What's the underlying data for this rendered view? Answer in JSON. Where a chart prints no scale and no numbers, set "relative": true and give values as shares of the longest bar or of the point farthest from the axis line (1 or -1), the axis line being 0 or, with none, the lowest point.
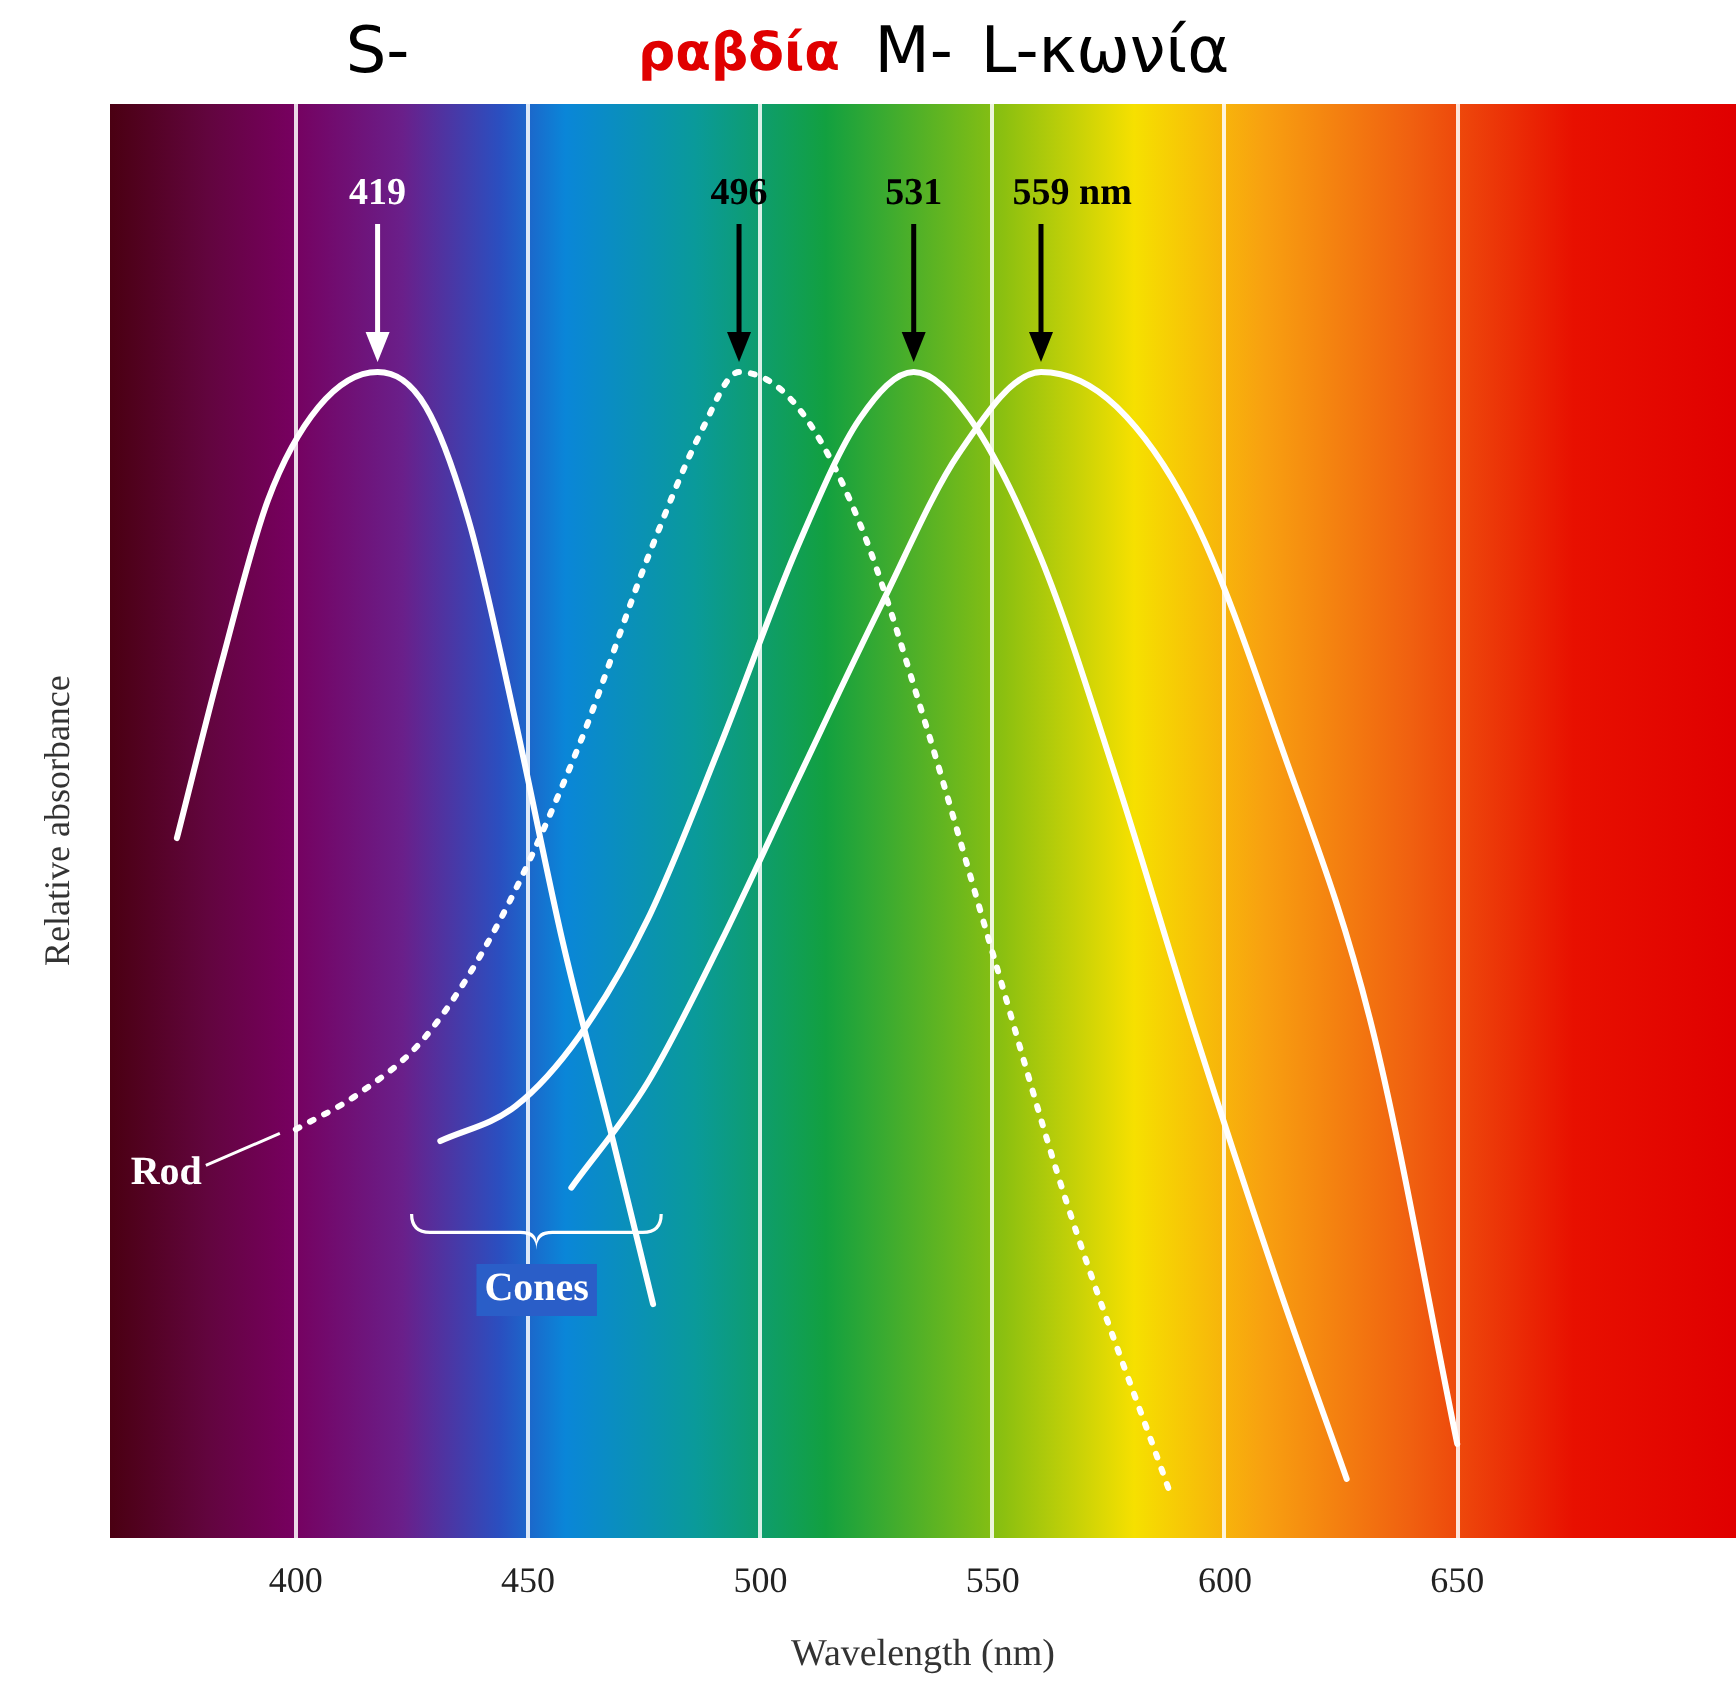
{
  "chart_data": {
    "type": "line",
    "xlabel": "Wavelength (nm)",
    "ylabel": "Relative absorbance",
    "relative": true,
    "xlim": [
      360,
      710
    ],
    "xticks": [
      400,
      450,
      500,
      550,
      600,
      650
    ],
    "grid": "x",
    "marker": "none",
    "series": [
      {
        "color": "#ffffff",
        "line_style": "solid",
        "x": [
          374.4,
          384,
          394,
          404.9,
          417.6,
          428,
          437.4,
          447.3,
          457.5,
          468.3,
          476.9
        ],
        "values": [
          0.6,
          0.75,
          0.89,
          0.97,
          1,
          0.97,
          0.87,
          0.7,
          0.51,
          0.34,
          0.2
        ]
      },
      {
        "name": "Rod",
        "color": "#ffffff",
        "line_style": "dotted",
        "x": [
          400,
          413.3,
          428,
          444,
          461,
          475.7,
          487.4,
          495.4,
          508,
          521.4,
          535.4,
          550.1,
          565.7,
          588
        ],
        "values": [
          0.35,
          0.38,
          0.43,
          0.53,
          0.68,
          0.84,
          0.95,
          1,
          0.97,
          0.87,
          0.7,
          0.5,
          0.29,
          0.04
        ]
      },
      {
        "color": "#ffffff",
        "line_style": "solid",
        "x": [
          431.1,
          447.3,
          461,
          475.7,
          491.4,
          508,
          521.4,
          533,
          545.1,
          560.4,
          576.7,
          593.8,
          612,
          626.2
        ],
        "values": [
          0.34,
          0.37,
          0.43,
          0.53,
          0.68,
          0.85,
          0.96,
          1,
          0.96,
          0.84,
          0.65,
          0.43,
          0.21,
          0.05
        ]
      },
      {
        "color": "#ffffff",
        "line_style": "solid",
        "x": [
          459.3,
          475.7,
          491.4,
          508,
          526,
          542.7,
          560.4,
          576.7,
          593.8,
          612,
          631.5,
          650
        ],
        "values": [
          0.3,
          0.39,
          0.51,
          0.65,
          0.8,
          0.93,
          1,
          0.97,
          0.87,
          0.68,
          0.44,
          0.08
        ]
      }
    ],
    "annotations": [
      "419",
      "496",
      "531",
      "559 nm",
      "S-",
      "ραβδία",
      "M-",
      "L-κωνία",
      "Cones"
    ]
  }
}
